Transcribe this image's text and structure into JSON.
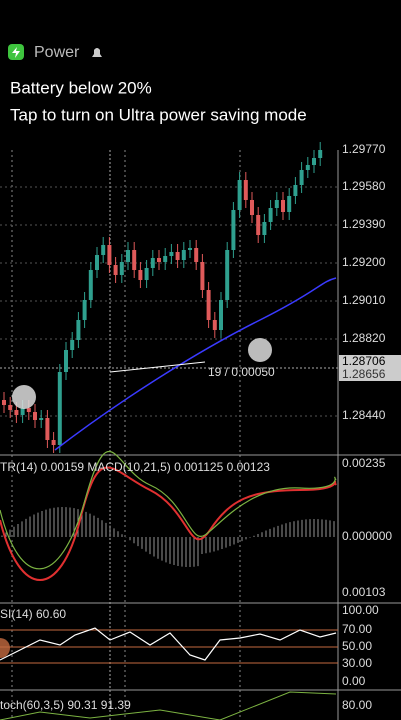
{
  "notification": {
    "app": "Power",
    "title": "Battery below 20%",
    "body": "Tap to turn on Ultra power saving mode"
  },
  "price_axis": [
    "1.29770",
    "1.29580",
    "1.29390",
    "1.29200",
    "1.29010",
    "1.28820",
    "1.28706",
    "1.28656",
    "1.28440"
  ],
  "crosshair_label": "19 / 0.00050",
  "macd": {
    "label": "TR(14) 0.00159 MACD(10,21,5) 0.001125 0.00123",
    "axis": [
      "0.00235",
      "0.000000",
      "0.00103"
    ]
  },
  "rsi": {
    "label": "SI(14) 60.60",
    "axis": [
      "100.00",
      "70.00",
      "50.00",
      "30.00",
      "0.00"
    ]
  },
  "stoch": {
    "label": "toch(60,3,5) 90.31 91.39",
    "axis": [
      "80.00"
    ]
  }
}
